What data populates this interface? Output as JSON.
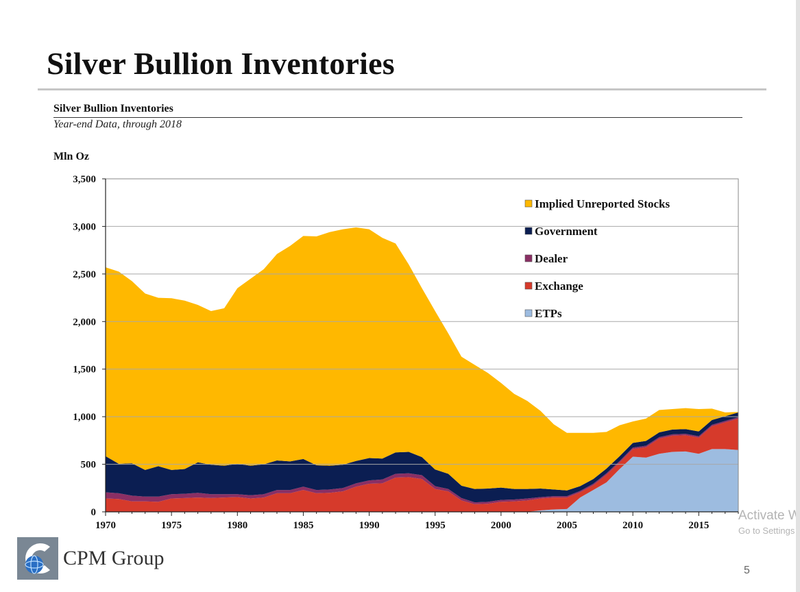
{
  "page": {
    "title": "Silver Bullion Inventories",
    "company": "CPM Group",
    "page_number": "5",
    "watermark_line1": "Activate Windows",
    "watermark_line2": "Go to Settings to activate Windows."
  },
  "colors": {
    "implied": "#FFB800",
    "government": "#0B1E52",
    "dealer": "#8A2F64",
    "exchange": "#D63A2B",
    "etps": "#9DBCE0"
  },
  "chart_data": {
    "type": "area",
    "stacked": true,
    "title": "Silver Bullion Inventories",
    "subtitle": "Year-end Data, through 2018",
    "ylabel": "Mln Oz",
    "xlabel": "",
    "ylim": [
      0,
      3500
    ],
    "yticks": [
      0,
      500,
      1000,
      1500,
      2000,
      2500,
      3000,
      3500
    ],
    "ytick_labels": [
      "0",
      "500",
      "1,000",
      "1,500",
      "2,000",
      "2,500",
      "3,000",
      "3,500"
    ],
    "xlim": [
      1970,
      2018
    ],
    "xticks": [
      1970,
      1975,
      1980,
      1985,
      1990,
      1995,
      2000,
      2005,
      2010,
      2015
    ],
    "grid": "horizontal",
    "legend_position": "top-right",
    "x": [
      1970,
      1971,
      1972,
      1973,
      1974,
      1975,
      1976,
      1977,
      1978,
      1979,
      1980,
      1981,
      1982,
      1983,
      1984,
      1985,
      1986,
      1987,
      1988,
      1989,
      1990,
      1991,
      1992,
      1993,
      1994,
      1995,
      1996,
      1997,
      1998,
      1999,
      2000,
      2001,
      2002,
      2003,
      2004,
      2005,
      2006,
      2007,
      2008,
      2009,
      2010,
      2011,
      2012,
      2013,
      2014,
      2015,
      2016,
      2017,
      2018
    ],
    "series": [
      {
        "name": "ETPs",
        "key": "etps",
        "values": [
          0,
          0,
          0,
          0,
          0,
          0,
          0,
          0,
          0,
          0,
          0,
          0,
          0,
          0,
          0,
          0,
          0,
          0,
          0,
          0,
          0,
          0,
          0,
          0,
          0,
          0,
          0,
          0,
          0,
          0,
          0,
          0,
          0,
          15,
          25,
          30,
          150,
          230,
          310,
          450,
          580,
          570,
          610,
          630,
          635,
          610,
          660,
          660,
          650
        ]
      },
      {
        "name": "Exchange",
        "key": "exchange",
        "values": [
          140,
          135,
          110,
          110,
          105,
          140,
          145,
          150,
          145,
          150,
          155,
          140,
          150,
          195,
          195,
          230,
          195,
          200,
          215,
          265,
          295,
          300,
          360,
          365,
          345,
          240,
          215,
          120,
          80,
          85,
          105,
          110,
          120,
          125,
          125,
          120,
          55,
          50,
          80,
          70,
          80,
          110,
          160,
          170,
          170,
          170,
          240,
          280,
          330
        ]
      },
      {
        "name": "Dealer",
        "key": "dealer",
        "values": [
          65,
          60,
          60,
          50,
          55,
          45,
          45,
          50,
          40,
          35,
          30,
          35,
          35,
          35,
          35,
          35,
          35,
          35,
          35,
          35,
          35,
          40,
          40,
          40,
          40,
          30,
          25,
          25,
          20,
          20,
          20,
          20,
          20,
          15,
          15,
          15,
          15,
          15,
          15,
          15,
          15,
          15,
          15,
          15,
          15,
          15,
          15,
          15,
          15
        ]
      },
      {
        "name": "Government",
        "key": "government",
        "values": [
          380,
          310,
          340,
          280,
          320,
          255,
          260,
          320,
          310,
          300,
          320,
          310,
          315,
          310,
          300,
          290,
          260,
          250,
          245,
          235,
          235,
          220,
          225,
          225,
          190,
          175,
          160,
          130,
          140,
          140,
          130,
          110,
          100,
          90,
          70,
          60,
          50,
          50,
          50,
          50,
          50,
          50,
          50,
          50,
          50,
          50,
          50,
          50,
          50
        ]
      },
      {
        "name": "Implied Unreported Stocks",
        "key": "implied",
        "values": [
          1985,
          2020,
          1915,
          1855,
          1770,
          1805,
          1770,
          1655,
          1615,
          1655,
          1845,
          1965,
          2050,
          2170,
          2265,
          2345,
          2405,
          2455,
          2475,
          2455,
          2405,
          2320,
          2195,
          1970,
          1775,
          1665,
          1475,
          1355,
          1305,
          1215,
          1100,
          1000,
          925,
          815,
          685,
          605,
          560,
          485,
          385,
          325,
          225,
          235,
          235,
          215,
          220,
          235,
          120,
          40,
          5
        ]
      }
    ],
    "legend_order": [
      "Implied Unreported Stocks",
      "Government",
      "Dealer",
      "Exchange",
      "ETPs"
    ]
  }
}
